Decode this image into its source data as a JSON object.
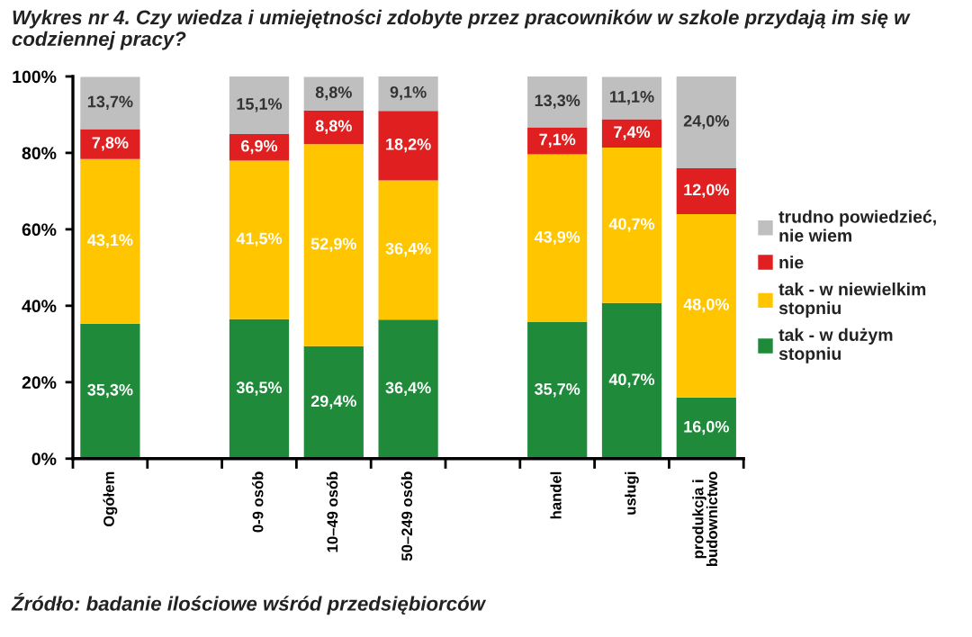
{
  "chart_data": {
    "type": "bar",
    "stacked": true,
    "title": "Wykres nr 4. Czy wiedza i umiejętności zdobyte przez pracowników w szkole przydają im się w codziennej pracy?",
    "categories": [
      "Ogółem",
      null,
      "0-9 osób",
      "10–49 osób",
      "50–249 osób",
      null,
      "handel",
      "usługi",
      "produkcja i budownictwo"
    ],
    "series": [
      {
        "name": "tak - w dużym stopniu",
        "color": "#1e8a3a",
        "values": [
          35.3,
          null,
          36.5,
          29.4,
          36.4,
          null,
          35.7,
          40.7,
          16.0
        ],
        "value_labels": [
          "35,3%",
          null,
          "36,5%",
          "29,4%",
          "36,4%",
          null,
          "35,7%",
          "40,7%",
          "16,0%"
        ]
      },
      {
        "name": "tak - w niewielkim stopniu",
        "color": "#ffc600",
        "values": [
          43.1,
          null,
          41.5,
          52.9,
          36.4,
          null,
          43.9,
          40.7,
          48.0
        ],
        "value_labels": [
          "43,1%",
          null,
          "41,5%",
          "52,9%",
          "36,4%",
          null,
          "43,9%",
          "40,7%",
          "48,0%"
        ]
      },
      {
        "name": "nie",
        "color": "#e02020",
        "values": [
          7.8,
          null,
          6.9,
          8.8,
          18.2,
          null,
          7.1,
          7.4,
          12.0
        ],
        "value_labels": [
          "7,8%",
          null,
          "6,9%",
          "8,8%",
          "18,2%",
          null,
          "7,1%",
          "7,4%",
          "12,0%"
        ]
      },
      {
        "name": "trudno powiedzieć, nie wiem",
        "color": "#bfbfbf",
        "values": [
          13.7,
          null,
          15.1,
          8.8,
          9.1,
          null,
          13.3,
          11.1,
          24.0
        ],
        "value_labels": [
          "13,7%",
          null,
          "15,1%",
          "8,8%",
          "9,1%",
          null,
          "13,3%",
          "11,1%",
          "24,0%"
        ]
      }
    ],
    "ylim": [
      0,
      100
    ],
    "yticks": [
      {
        "value": 0,
        "label": "0%"
      },
      {
        "value": 20,
        "label": "20%"
      },
      {
        "value": 40,
        "label": "40%"
      },
      {
        "value": 60,
        "label": "60%"
      },
      {
        "value": 80,
        "label": "80%"
      },
      {
        "value": 100,
        "label": "100%"
      }
    ],
    "legend": "right",
    "grid": false,
    "annotations": [
      "Źródło: badanie ilościowe wśród przedsiębiorców"
    ]
  }
}
